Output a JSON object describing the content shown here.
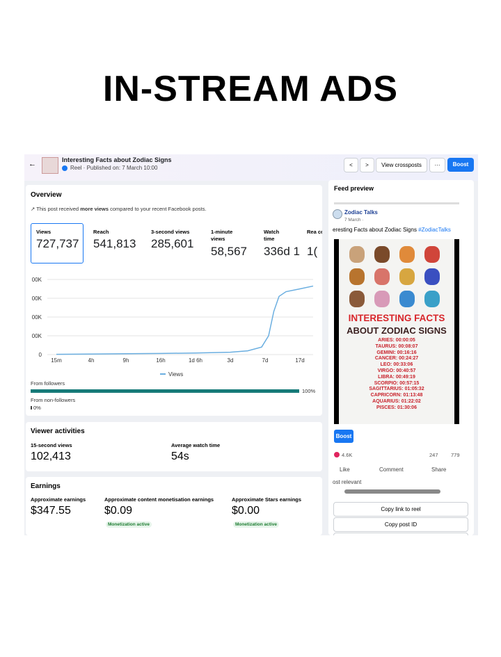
{
  "title": "IN-STREAM ADS",
  "post": {
    "title": "Interesting Facts about Zodiac Signs",
    "meta": "Reel · Published on: 7 March 10:00",
    "crossposts": "View crossposts",
    "boost": "Boost"
  },
  "overview": {
    "heading": "Overview",
    "note": {
      "pre": "This post received ",
      "bold": "more views",
      "post": " compared to your recent Facebook posts."
    },
    "metrics": [
      {
        "label": "Views",
        "value": "727,737"
      },
      {
        "label": "Reach",
        "value": "541,813"
      },
      {
        "label": "3-second views",
        "value": "285,601"
      },
      {
        "label": "1-minute views",
        "value": "58,567"
      },
      {
        "label": "Watch time",
        "value": "336d 1"
      },
      {
        "label": "Rea con",
        "value": "1("
      }
    ],
    "chart": {
      "type": "line",
      "legend": "Views",
      "color": "#6aaee0",
      "x": [
        0,
        1,
        2,
        3,
        4,
        5,
        5.5,
        5.9,
        6.1,
        6.25,
        6.4,
        6.6,
        7,
        7.38
      ],
      "values": [
        3000,
        6000,
        9000,
        12000,
        17000,
        25000,
        40000,
        80000,
        200000,
        460000,
        620000,
        670000,
        700000,
        730000
      ],
      "xlim": [
        0,
        7.38
      ],
      "ylim": [
        0,
        800000
      ],
      "xticks": [
        {
          "value": 0,
          "label": "15m"
        },
        {
          "value": 1,
          "label": "4h"
        },
        {
          "value": 2,
          "label": "9h"
        },
        {
          "value": 3,
          "label": "16h"
        },
        {
          "value": 4,
          "label": "1d 6h"
        },
        {
          "value": 5,
          "label": "3d"
        },
        {
          "value": 6,
          "label": "7d"
        },
        {
          "value": 7,
          "label": "17d"
        }
      ],
      "yticks": [
        0,
        {
          "value": 200000,
          "label": "00K"
        },
        {
          "value": 400000,
          "label": "00K"
        },
        {
          "value": 600000,
          "label": "00K"
        },
        {
          "value": 800000,
          "label": "00K"
        }
      ]
    },
    "audience": [
      {
        "label": "From followers",
        "value": 100,
        "value_label": "100%"
      },
      {
        "label": "From non-followers",
        "value": 0,
        "value_label": "0%"
      }
    ]
  },
  "viewer": {
    "heading": "Viewer activities",
    "metrics": [
      {
        "label": "15-second views",
        "value": "102,413"
      },
      {
        "label": "Average watch time",
        "value": "54s"
      }
    ]
  },
  "earnings": {
    "heading": "Earnings",
    "metrics": [
      {
        "label": "Approximate earnings",
        "value": "$347.55"
      },
      {
        "label": "Approximate content monetisation earnings",
        "value": "$0.09",
        "badge": "Monetization active"
      },
      {
        "label": "Approximate Stars earnings",
        "value": "$0.00",
        "badge": "Monetization active"
      }
    ]
  },
  "feed": {
    "heading": "Feed preview",
    "page": "Zodiac Talks",
    "date": "7 March ·",
    "caption": "eresting Facts about Zodiac Signs ",
    "hashtag": "#ZodiacTalks",
    "image": {
      "line1": "INTERESTING FACTS",
      "line2": "ABOUT ZODIAC SIGNS",
      "signs": [
        "ARIES: 00:00:05",
        "TAURUS: 00:08:07",
        "GEMINI: 00:16:16",
        "CANCER: 00:24:27",
        "LEO: 00:33:06",
        "VIRGO: 00:40:57",
        "LIBRA: 00:49:19",
        "SCORPIO: 00:57:15",
        "SAGITTARIUS: 01:05:32",
        "CAPRICORN: 01:13:48",
        "AQUARIUS: 01:22:02",
        "PISCES: 01:30:06"
      ]
    },
    "boost": "Boost",
    "reactions": "4.6K",
    "comments": "247",
    "shares": "779",
    "actions": [
      "Like",
      "Comment",
      "Share"
    ],
    "sort": "ost relevant",
    "buttons": [
      "Copy link to reel",
      "Copy post ID"
    ]
  }
}
